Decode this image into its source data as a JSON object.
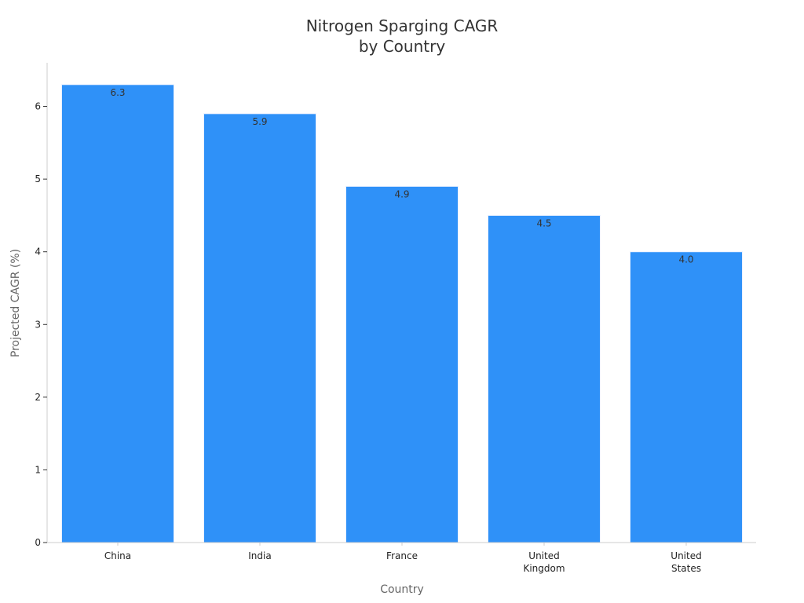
{
  "chart_data": {
    "type": "bar",
    "title_lines": [
      "Nitrogen Sparging CAGR",
      "by Country"
    ],
    "xlabel": "Country",
    "ylabel": "Projected CAGR (%)",
    "categories": [
      [
        "China"
      ],
      [
        "India"
      ],
      [
        "France"
      ],
      [
        "United",
        "Kingdom"
      ],
      [
        "United",
        "States"
      ]
    ],
    "values": [
      6.3,
      5.9,
      4.9,
      4.5,
      4.0
    ],
    "data_labels": [
      "6.3",
      "5.9",
      "4.9",
      "4.5",
      "4.0"
    ],
    "ylim": [
      0,
      6.6
    ],
    "yticks": [
      0,
      1,
      2,
      3,
      4,
      5,
      6
    ],
    "grid": false,
    "legend": "none",
    "bar_color": "#2f91f8",
    "axis_color": "#cccccc"
  }
}
